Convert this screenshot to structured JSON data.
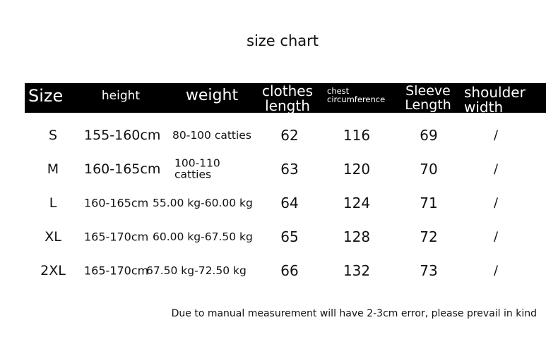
{
  "title": "size chart",
  "table": {
    "header": [
      "Size",
      "height",
      "weight",
      "clothes length",
      "chest circumference",
      "Sleeve Length",
      "shoulder width"
    ],
    "rows": [
      [
        "S",
        "155-160cm",
        "80-100 catties",
        "62",
        "116",
        "69",
        "/"
      ],
      [
        "M",
        "160-165cm",
        "100-110 catties",
        "63",
        "120",
        "70",
        "/"
      ],
      [
        "L",
        "160-165cm",
        "55.00 kg-60.00 kg",
        "64",
        "124",
        "71",
        "/"
      ],
      [
        "XL",
        "165-170cm",
        "60.00 kg-67.50 kg",
        "65",
        "128",
        "72",
        "/"
      ],
      [
        "2XL",
        "165-170cm",
        "67.50 kg-72.50 kg",
        "66",
        "132",
        "73",
        "/"
      ]
    ]
  },
  "note": "Due to manual measurement will have 2-3cm error, please prevail in kind"
}
